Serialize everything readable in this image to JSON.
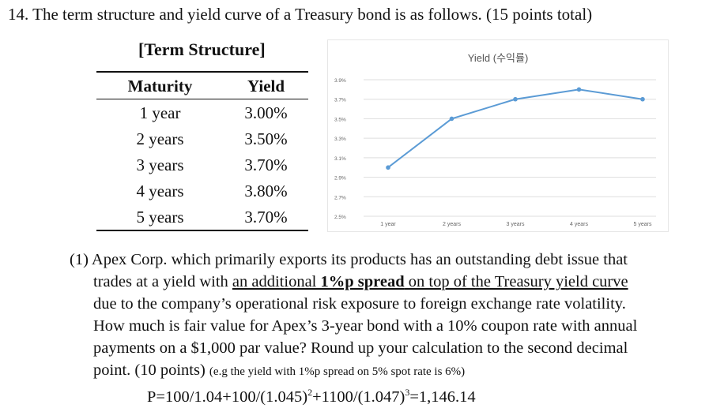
{
  "question": {
    "title": "14. The term structure and yield curve of a Treasury bond is as follows. (15 points total)"
  },
  "term_table": {
    "caption": "[Term Structure]",
    "headers": [
      "Maturity",
      "Yield"
    ],
    "rows": [
      [
        "1 year",
        "3.00%"
      ],
      [
        "2 years",
        "3.50%"
      ],
      [
        "3 years",
        "3.70%"
      ],
      [
        "4 years",
        "3.80%"
      ],
      [
        "5 years",
        "3.70%"
      ]
    ]
  },
  "chart_data": {
    "type": "line",
    "title": "Yield (수익률)",
    "categories": [
      "1 year",
      "2 years",
      "3 years",
      "4 years",
      "5 years"
    ],
    "series": [
      {
        "values": [
          3.0,
          3.5,
          3.7,
          3.8,
          3.7
        ]
      }
    ],
    "y_ticks": [
      "3.9%",
      "3.7%",
      "3.5%",
      "3.3%",
      "3.1%",
      "2.9%",
      "2.7%",
      "2.5%"
    ],
    "ylim": [
      2.5,
      3.9
    ],
    "grid": true,
    "line_color": "#5b9bd5"
  },
  "part1": {
    "line1": "(1) Apex Corp. which primarily exports its products has an outstanding debt issue that",
    "line2_a": "trades at a yield with ",
    "line2_b": "an additional ",
    "line2_bold": "1%p spread",
    "line2_c": " on top of the Treasury yield curve",
    "line3": "due to the company’s operational risk exposure to foreign exchange rate volatility.",
    "line4": "How much is fair value for Apex’s 3-year bond with a 10% coupon rate with annual",
    "line5": "payments on a $1,000 par value? Round up your calculation to the second decimal",
    "line6_a": "point. (10 points) ",
    "line6_small": "(e.g the yield with 1%p spread on 5% spot rate is 6%)"
  },
  "formula": {
    "p1": "P=100/1.04+100/(1.045)",
    "sup1": "2",
    "p2": "+1100/(1.047)",
    "sup2": "3",
    "p3": "=1,146.14"
  }
}
